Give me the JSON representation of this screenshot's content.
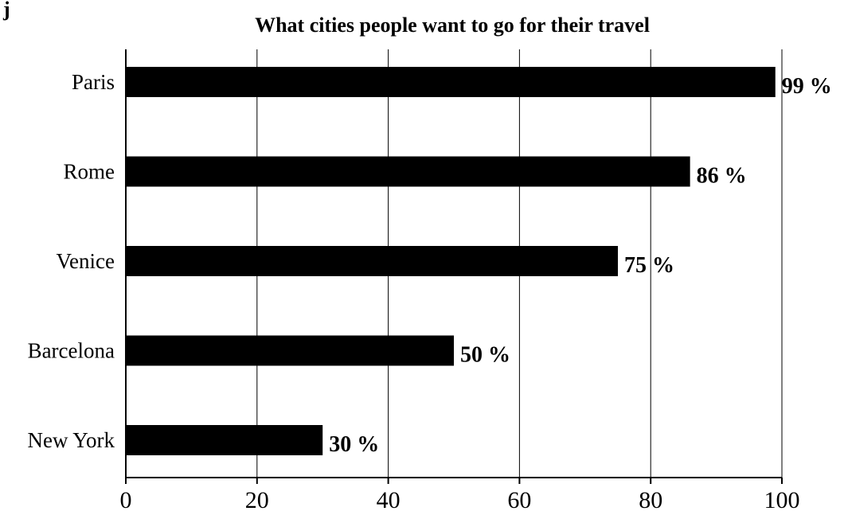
{
  "chart_data": {
    "type": "bar",
    "orientation": "horizontal",
    "title": "What cities people want to go for their travel",
    "categories": [
      "Paris",
      "Rome",
      "Venice",
      "Barcelona",
      "New York"
    ],
    "values": [
      99,
      86,
      75,
      50,
      30
    ],
    "data_labels": [
      "99 %",
      "86 %",
      "75 %",
      "50 %",
      "30 %"
    ],
    "xlim": [
      0,
      100
    ],
    "xticks": [
      0,
      20,
      40,
      60,
      80,
      100
    ],
    "xtick_labels": [
      "0",
      "20",
      "40",
      "60",
      "80",
      "100"
    ],
    "grid": "vertical",
    "legend": "none",
    "bar_color": "#000000"
  },
  "page_marker": "j"
}
